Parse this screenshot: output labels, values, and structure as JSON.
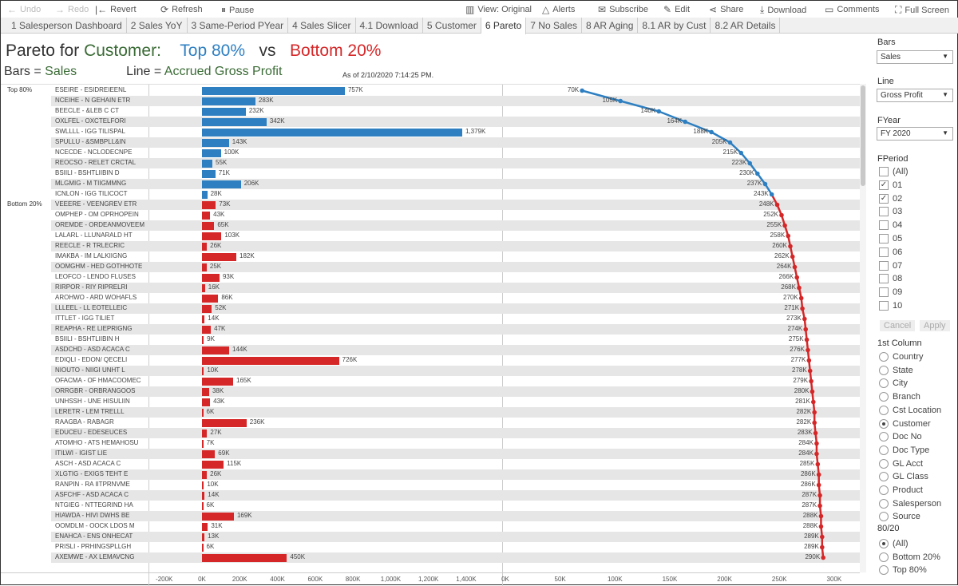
{
  "toolbar": {
    "undo": "Undo",
    "redo": "Redo",
    "revert": "Revert",
    "refresh": "Refresh",
    "pause": "Pause",
    "view": "View: Original",
    "alerts": "Alerts",
    "subscribe": "Subscribe",
    "edit": "Edit",
    "share": "Share",
    "download": "Download",
    "comments": "Comments",
    "fullscreen": "Full Screen"
  },
  "tabs": [
    "1 Salesperson Dashboard",
    "2 Sales YoY",
    "3 Same-Period PYear",
    "4 Sales Slicer",
    "4.1 Download",
    "5 Customer",
    "6 Pareto",
    "7 No Sales",
    "8 AR Aging",
    "8.1 AR by Cust",
    "8.2 AR Details"
  ],
  "active_tab": "6 Pareto",
  "header": {
    "t1": "Pareto for ",
    "t2": "Customer:",
    "t3": "Top 80%",
    "t4": "vs",
    "t5": "Bottom 20%",
    "s1": "Bars = ",
    "s2": "Sales",
    "s3": "Line = ",
    "s4": "Accrued Gross Profit",
    "asof": "As of  2/10/2020 7:14:25 PM."
  },
  "colors": {
    "top": "#2d7fc1",
    "bottom": "#d62728",
    "green": "#3a6b35"
  },
  "chart_data": {
    "type": "bar+line",
    "groups": [
      "Top 80%",
      "Bottom 20%"
    ],
    "bar_axis": {
      "ticks": [
        "-200K",
        "0K",
        "200K",
        "400K",
        "600K",
        "800K",
        "1,000K",
        "1,200K",
        "1,400K"
      ],
      "range": [
        -200,
        1460
      ]
    },
    "line_axis": {
      "ticks": [
        "0K",
        "50K",
        "100K",
        "150K",
        "200K",
        "250K",
        "300K"
      ],
      "range": [
        0,
        315
      ]
    },
    "rows": [
      {
        "g": 0,
        "name": "ESEIRE  -  ESIDREIEENL",
        "sales": 757,
        "sl": "757K",
        "gp": 70,
        "gl": "70K"
      },
      {
        "g": 0,
        "name": "NCEIHE  -  N GEHAIN ETR",
        "sales": 283,
        "sl": "283K",
        "gp": 105,
        "gl": "105K"
      },
      {
        "g": 0,
        "name": "BEECLE  -   &LEB C CT",
        "sales": 232,
        "sl": "232K",
        "gp": 140,
        "gl": "140K"
      },
      {
        "g": 0,
        "name": "OXLFEL  -  OXCTELFORI",
        "sales": 342,
        "sl": "342K",
        "gp": 164,
        "gl": "164K"
      },
      {
        "g": 0,
        "name": "SWLLLL  -  IGG TILISPAL",
        "sales": 1379,
        "sl": "1,379K",
        "gp": 188,
        "gl": "188K"
      },
      {
        "g": 0,
        "name": "SPULLU  -  &SMBPLL&IN",
        "sales": 143,
        "sl": "143K",
        "gp": 205,
        "gl": "205K"
      },
      {
        "g": 0,
        "name": "NCECDE  -  NCLODECNPE",
        "sales": 100,
        "sl": "100K",
        "gp": 215,
        "gl": "215K"
      },
      {
        "g": 0,
        "name": "REOCSO  -  RELET CRCTAL",
        "sales": 55,
        "sl": "55K",
        "gp": 223,
        "gl": "223K"
      },
      {
        "g": 0,
        "name": "BSIILI  -  BSHTLIIBIN D",
        "sales": 71,
        "sl": "71K",
        "gp": 230,
        "gl": "230K"
      },
      {
        "g": 0,
        "name": "MLGMIG  -  M TIIGMMNG",
        "sales": 206,
        "sl": "206K",
        "gp": 237,
        "gl": "237K"
      },
      {
        "g": 0,
        "name": "ICNLON  -  IGG TILICOCT",
        "sales": 28,
        "sl": "28K",
        "gp": 243,
        "gl": "243K"
      },
      {
        "g": 1,
        "name": "VEEERE  -  VEENGREV ETR",
        "sales": 73,
        "sl": "73K",
        "gp": 248,
        "gl": "248K"
      },
      {
        "g": 1,
        "name": "OMPHEP  -  OM OPRHOPEIN",
        "sales": 43,
        "sl": "43K",
        "gp": 252,
        "gl": "252K"
      },
      {
        "g": 1,
        "name": "OREMDE  -  ORDEANMOVEEM",
        "sales": 65,
        "sl": "65K",
        "gp": 255,
        "gl": "255K"
      },
      {
        "g": 1,
        "name": "LALARL  -  LLUNARALD HT",
        "sales": 103,
        "sl": "103K",
        "gp": 258,
        "gl": "258K"
      },
      {
        "g": 1,
        "name": "REECLE  -  R TRLECRIC",
        "sales": 26,
        "sl": "26K",
        "gp": 260,
        "gl": "260K"
      },
      {
        "g": 1,
        "name": "IMAKBA  -  IM LALKIIGNG",
        "sales": 182,
        "sl": "182K",
        "gp": 262,
        "gl": "262K"
      },
      {
        "g": 1,
        "name": "OOMGHM  -  HED GOTHHOTE",
        "sales": 25,
        "sl": "25K",
        "gp": 264,
        "gl": "264K"
      },
      {
        "g": 1,
        "name": "LEOFCO  -  LENDO FLUSES",
        "sales": 93,
        "sl": "93K",
        "gp": 266,
        "gl": "266K"
      },
      {
        "g": 1,
        "name": "RIRPOR  -  RIY RIPRELRI",
        "sales": 16,
        "sl": "16K",
        "gp": 268,
        "gl": "268K"
      },
      {
        "g": 1,
        "name": "AROHWO  -  ARD WOHAFLS",
        "sales": 86,
        "sl": "86K",
        "gp": 270,
        "gl": "270K"
      },
      {
        "g": 1,
        "name": "LLLEEL  -  LL EOTELLEIC",
        "sales": 52,
        "sl": "52K",
        "gp": 271,
        "gl": "271K"
      },
      {
        "g": 1,
        "name": "ITTLET  -  IGG TILIET",
        "sales": 14,
        "sl": "14K",
        "gp": 273,
        "gl": "273K"
      },
      {
        "g": 1,
        "name": "REAPHA  -  RE LIEPRIGNG",
        "sales": 47,
        "sl": "47K",
        "gp": 274,
        "gl": "274K"
      },
      {
        "g": 1,
        "name": "BSIILI  -  BSHTLIIBIN H",
        "sales": 9,
        "sl": "9K",
        "gp": 275,
        "gl": "275K"
      },
      {
        "g": 1,
        "name": "ASDCHD  -  ASD  ACACA C",
        "sales": 144,
        "sl": "144K",
        "gp": 276,
        "gl": "276K"
      },
      {
        "g": 1,
        "name": "EDIQLI  -  EDON/ QECELI",
        "sales": 726,
        "sl": "726K",
        "gp": 277,
        "gl": "277K"
      },
      {
        "g": 1,
        "name": "NIOUTO  -  NIIGI UNHT L",
        "sales": 10,
        "sl": "10K",
        "gp": 278,
        "gl": "278K"
      },
      {
        "g": 1,
        "name": "OFACMA  -  OF HMACOOMEC",
        "sales": 165,
        "sl": "165K",
        "gp": 279,
        "gl": "279K"
      },
      {
        "g": 1,
        "name": "ORRGBR  -  ORBRANGOOS",
        "sales": 38,
        "sl": "38K",
        "gp": 280,
        "gl": "280K"
      },
      {
        "g": 1,
        "name": "UNHSSH  -  UNE HISULIIN",
        "sales": 43,
        "sl": "43K",
        "gp": 281,
        "gl": "281K"
      },
      {
        "g": 1,
        "name": "LERETR  -  LEM TRELLL",
        "sales": 6,
        "sl": "6K",
        "gp": 282,
        "gl": "282K"
      },
      {
        "g": 1,
        "name": "RAAGBA  -  RABAGR",
        "sales": 236,
        "sl": "236K",
        "gp": 282,
        "gl": "282K"
      },
      {
        "g": 1,
        "name": "EDUCEU  -  EDESEUCES",
        "sales": 27,
        "sl": "27K",
        "gp": 283,
        "gl": "283K"
      },
      {
        "g": 1,
        "name": "ATOMHO  -  ATS HEMAHOSU",
        "sales": 7,
        "sl": "7K",
        "gp": 284,
        "gl": "284K"
      },
      {
        "g": 1,
        "name": "ITILWI  -  IGIST LIE",
        "sales": 69,
        "sl": "69K",
        "gp": 284,
        "gl": "284K"
      },
      {
        "g": 1,
        "name": "ASCH  -  ASD  ACACA C",
        "sales": 115,
        "sl": "115K",
        "gp": 285,
        "gl": "285K"
      },
      {
        "g": 1,
        "name": "XLGTIG  -  EXIGS TEHT E",
        "sales": 26,
        "sl": "26K",
        "gp": 286,
        "gl": "286K"
      },
      {
        "g": 1,
        "name": "RANPIN  -  RA IITPRNVME",
        "sales": 10,
        "sl": "10K",
        "gp": 286,
        "gl": "286K"
      },
      {
        "g": 1,
        "name": "ASFCHF  -  ASD  ACACA C",
        "sales": 14,
        "sl": "14K",
        "gp": 287,
        "gl": "287K"
      },
      {
        "g": 1,
        "name": "NTGIEG  -  NTTEGRIND HA",
        "sales": 6,
        "sl": "6K",
        "gp": 287,
        "gl": "287K"
      },
      {
        "g": 1,
        "name": "HIAWDA  -  HIVI DWHS BE",
        "sales": 169,
        "sl": "169K",
        "gp": 288,
        "gl": "288K"
      },
      {
        "g": 1,
        "name": "OOMDLM  -  OOCK LDOS  M",
        "sales": 31,
        "sl": "31K",
        "gp": 288,
        "gl": "288K"
      },
      {
        "g": 1,
        "name": "ENAHCA  -  ENS ONHECAT",
        "sales": 13,
        "sl": "13K",
        "gp": 289,
        "gl": "289K"
      },
      {
        "g": 1,
        "name": "PRISLI  -  PRHINGSPLLGH",
        "sales": 6,
        "sl": "6K",
        "gp": 289,
        "gl": "289K"
      },
      {
        "g": 1,
        "name": "AXEMWE  -  AX LEMAVCNG",
        "sales": 450,
        "sl": "450K",
        "gp": 290,
        "gl": "290K"
      }
    ]
  },
  "panel": {
    "bars_label": "Bars",
    "bars_value": "Sales",
    "line_label": "Line",
    "line_value": "Gross Profit",
    "fyear_label": "FYear",
    "fyear_value": "FY 2020",
    "fperiod_label": "FPeriod",
    "fperiods": [
      {
        "l": "(All)",
        "c": false
      },
      {
        "l": "01",
        "c": true
      },
      {
        "l": "02",
        "c": true
      },
      {
        "l": "03",
        "c": false
      },
      {
        "l": "04",
        "c": false
      },
      {
        "l": "05",
        "c": false
      },
      {
        "l": "06",
        "c": false
      },
      {
        "l": "07",
        "c": false
      },
      {
        "l": "08",
        "c": false
      },
      {
        "l": "09",
        "c": false
      },
      {
        "l": "10",
        "c": false
      }
    ],
    "cancel": "Cancel",
    "apply": "Apply",
    "col_label": "1st Column",
    "columns": [
      {
        "l": "Country",
        "s": false
      },
      {
        "l": "State",
        "s": false
      },
      {
        "l": "City",
        "s": false
      },
      {
        "l": "Branch",
        "s": false
      },
      {
        "l": "Cst Location",
        "s": false
      },
      {
        "l": "Customer",
        "s": true
      },
      {
        "l": "Doc No",
        "s": false
      },
      {
        "l": "Doc Type",
        "s": false
      },
      {
        "l": "GL Acct",
        "s": false
      },
      {
        "l": "GL Class",
        "s": false
      },
      {
        "l": "Product",
        "s": false
      },
      {
        "l": "Salesperson",
        "s": false
      },
      {
        "l": "Source",
        "s": false
      }
    ],
    "split_label": "80/20",
    "splits": [
      {
        "l": "(All)",
        "s": true
      },
      {
        "l": "Bottom 20%",
        "s": false
      },
      {
        "l": "Top 80%",
        "s": false
      }
    ]
  }
}
